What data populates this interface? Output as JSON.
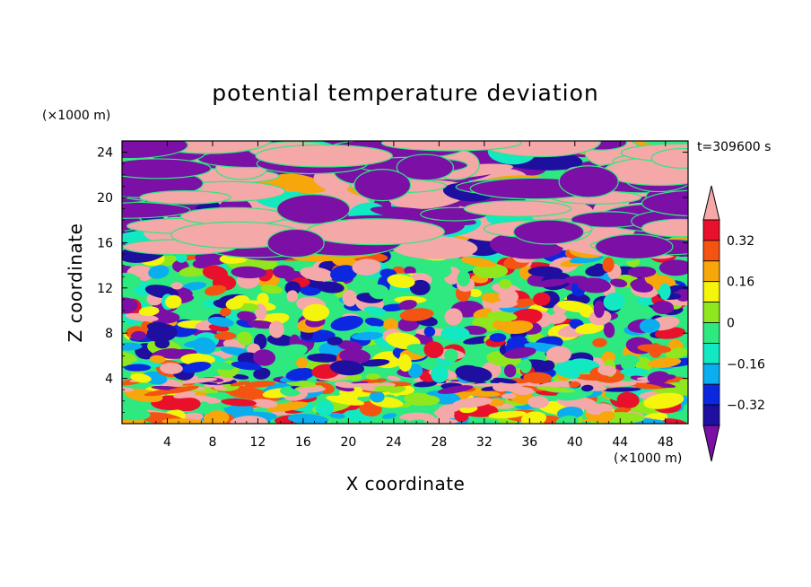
{
  "chart_data": {
    "type": "heatmap",
    "title": "potential temperature deviation",
    "xlabel": "X coordinate",
    "ylabel": "Z coordinate",
    "x_unit": "(×1000 m)",
    "y_unit": "(×1000 m)",
    "time_label": "t=309600 s",
    "xlim": [
      0,
      50
    ],
    "ylim": [
      0,
      25
    ],
    "x_ticks": [
      "4",
      "8",
      "12",
      "16",
      "20",
      "24",
      "28",
      "32",
      "36",
      "40",
      "44",
      "48"
    ],
    "x_tick_values": [
      4,
      8,
      12,
      16,
      20,
      24,
      28,
      32,
      36,
      40,
      44,
      48
    ],
    "y_ticks": [
      "4",
      "8",
      "12",
      "16",
      "20",
      "24"
    ],
    "y_tick_values": [
      4,
      8,
      12,
      16,
      20,
      24
    ],
    "colorbar": {
      "levels": [
        -0.4,
        -0.32,
        -0.24,
        -0.16,
        -0.08,
        0,
        0.08,
        0.16,
        0.24,
        0.32,
        0.4
      ],
      "tick_labels": [
        "−0.32",
        "−0.16",
        "0",
        "0.16",
        "0.32"
      ],
      "tick_values": [
        -0.32,
        -0.16,
        0,
        0.16,
        0.32
      ],
      "colors": [
        "#7b0fa6",
        "#1e0fa0",
        "#0b28e0",
        "#0aaeee",
        "#12e8c2",
        "#2ee880",
        "#8fe81e",
        "#f4f40c",
        "#f7a70a",
        "#f45312",
        "#e8102a",
        "#f4a8a8"
      ],
      "extend": "both"
    }
  }
}
